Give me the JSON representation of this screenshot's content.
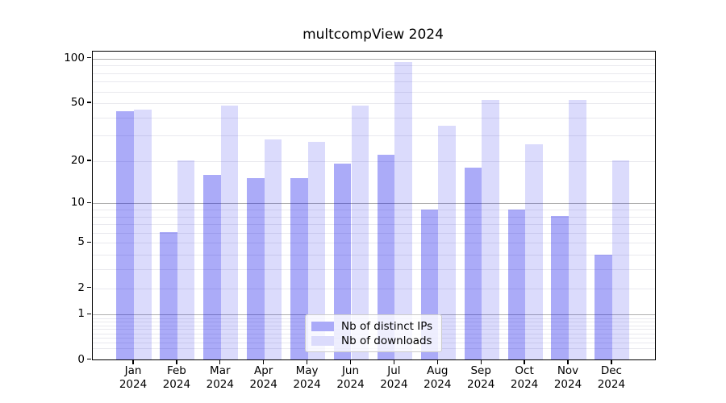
{
  "title": "multcompView 2024",
  "colors": {
    "bar_dark": "rgba(0,0,235,0.33)",
    "bar_light": "rgba(0,0,235,0.14)",
    "swatch_dark": "#aaaaf8",
    "swatch_light": "#dbdbfc",
    "grid_major": "#b0b0b0",
    "grid_minor": "#e9e9ee",
    "axis": "#000000"
  },
  "legend": {
    "items": [
      {
        "label": "Nb of distinct IPs",
        "swatch": "swatch_dark"
      },
      {
        "label": "Nb of downloads",
        "swatch": "swatch_light"
      }
    ]
  },
  "x_axis": {
    "months": [
      "Jan",
      "Feb",
      "Mar",
      "Apr",
      "May",
      "Jun",
      "Jul",
      "Aug",
      "Sep",
      "Oct",
      "Nov",
      "Dec"
    ],
    "year_line": "2024"
  },
  "y_axis": {
    "labeled_ticks": [
      100,
      50,
      20,
      10,
      5,
      2,
      1,
      0
    ],
    "major_gridlines": [
      100,
      10,
      1
    ],
    "minor_gridlines": [
      90,
      80,
      70,
      60,
      50,
      40,
      30,
      20,
      9,
      8,
      7,
      6,
      5,
      4,
      3,
      2,
      0.9,
      0.8,
      0.7,
      0.6,
      0.5,
      0.4,
      0.3,
      0.2
    ]
  },
  "chart_data": {
    "type": "bar",
    "title": "multcompView 2024",
    "categories": [
      "Jan 2024",
      "Feb 2024",
      "Mar 2024",
      "Apr 2024",
      "May 2024",
      "Jun 2024",
      "Jul 2024",
      "Aug 2024",
      "Sep 2024",
      "Oct 2024",
      "Nov 2024",
      "Dec 2024"
    ],
    "series": [
      {
        "name": "Nb of distinct IPs",
        "values": [
          44,
          6,
          16,
          15,
          15,
          19,
          22,
          9,
          18,
          9,
          8,
          4
        ]
      },
      {
        "name": "Nb of downloads",
        "values": [
          45,
          20,
          48,
          28,
          27,
          48,
          94,
          35,
          52,
          26,
          52,
          20
        ]
      }
    ],
    "y_scale": "log1p",
    "y_tick_labels": [
      "100",
      "50",
      "20",
      "10",
      "5",
      "2",
      "1",
      "0"
    ],
    "ylim": [
      0,
      111
    ],
    "grid": true,
    "legend_position": "lower center",
    "xlabel": "",
    "ylabel": ""
  }
}
